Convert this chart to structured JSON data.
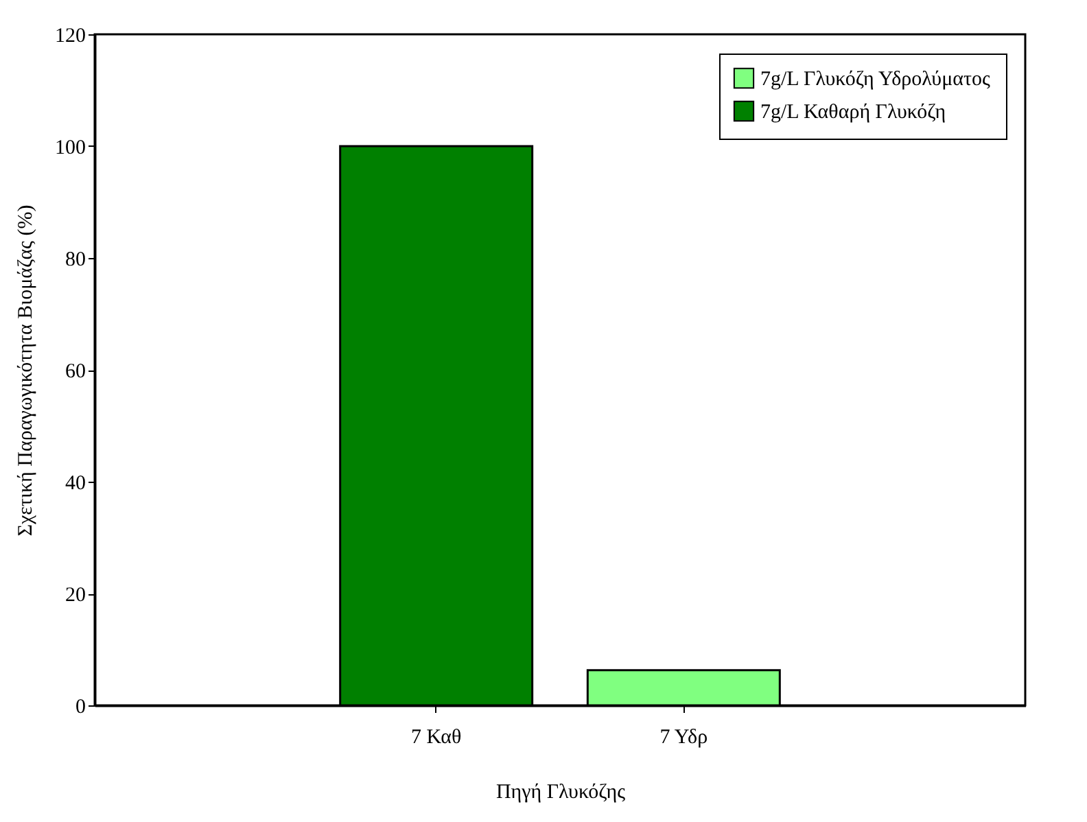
{
  "chart_data": {
    "type": "bar",
    "xlabel": "Πηγή Γλυκόζης",
    "ylabel": "Σχετική Παραγωγικότητα Βιομάζας (%)",
    "categories": [
      "7 Καθ",
      "7 Υδρ"
    ],
    "series": [
      {
        "name": "7g/L Γλυκόζη Υδρολύματος",
        "color": "#80ff80",
        "values": [
          null,
          6.3
        ]
      },
      {
        "name": "7g/L Καθαρή Γλυκόζη",
        "color": "#008000",
        "values": [
          100,
          null
        ]
      }
    ],
    "ylim": [
      0,
      120
    ],
    "yticks": [
      0,
      20,
      40,
      60,
      80,
      100,
      120
    ],
    "legend": "top right"
  }
}
